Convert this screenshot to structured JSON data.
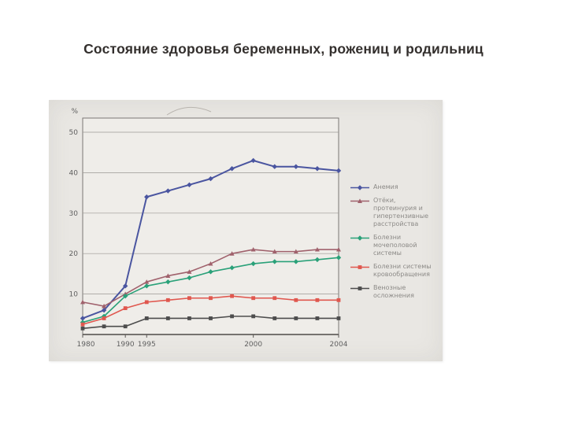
{
  "slide": {
    "title": "Состояние здоровья беременных, рожениц и родильниц"
  },
  "chart_data": {
    "type": "line",
    "title": "",
    "xlabel": "",
    "ylabel": "%",
    "ylim": [
      0,
      50
    ],
    "yticks": [
      10,
      20,
      30,
      40,
      50
    ],
    "grid": true,
    "legend_position": "right",
    "x": [
      1980,
      1985,
      1990,
      1995,
      1996,
      1997,
      1998,
      1999,
      2000,
      2001,
      2002,
      2003,
      2004
    ],
    "xtick_labels": [
      "1980",
      "1990",
      "1995",
      "2000",
      "2004"
    ],
    "xtick_indices": [
      0,
      2,
      3,
      8,
      12
    ],
    "series": [
      {
        "name": "Анемия",
        "color": "#4a55a0",
        "marker": "diamond",
        "values": [
          4,
          6,
          12,
          34,
          35.5,
          37,
          38.5,
          41,
          43,
          41.5,
          41.5,
          41,
          40.5
        ]
      },
      {
        "name": "Отёки, протеинурия и гипертензивные расстройства",
        "color": "#a0616c",
        "marker": "triangle",
        "values": [
          8,
          7,
          10,
          13,
          14.5,
          15.5,
          17.5,
          20,
          21,
          20.5,
          20.5,
          21,
          21
        ]
      },
      {
        "name": "Болезни мочеполовой системы",
        "color": "#2aa179",
        "marker": "diamond",
        "values": [
          3,
          4.5,
          9.5,
          12,
          13,
          14,
          15.5,
          16.5,
          17.5,
          18,
          18,
          18.5,
          19
        ]
      },
      {
        "name": "Болезни системы кровообращения",
        "color": "#e0574e",
        "marker": "square",
        "values": [
          2.5,
          4,
          6.5,
          8,
          8.5,
          9,
          9,
          9.5,
          9,
          9,
          8.5,
          8.5,
          8.5
        ]
      },
      {
        "name": "Венозные осложнения",
        "color": "#4d4d4d",
        "marker": "square",
        "values": [
          1.5,
          2,
          2,
          4,
          4,
          4,
          4,
          4.5,
          4.5,
          4,
          4,
          4,
          4
        ]
      }
    ]
  }
}
